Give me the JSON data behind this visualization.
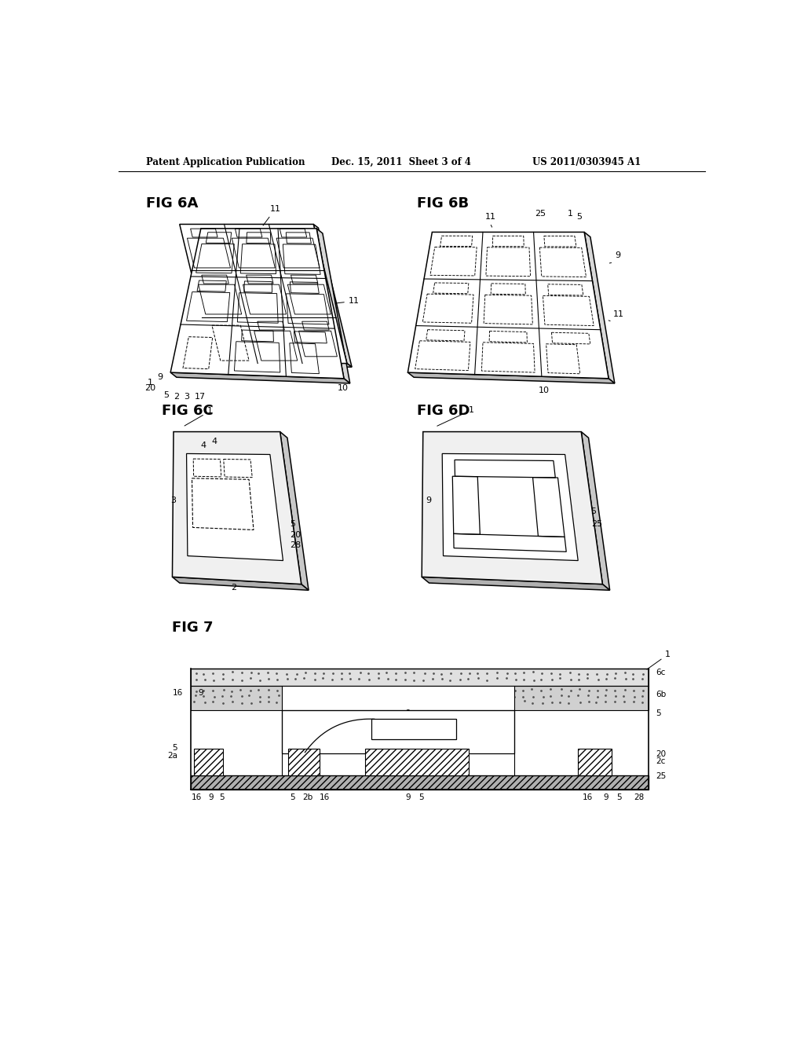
{
  "bg": "#ffffff",
  "header_left": "Patent Application Publication",
  "header_mid": "Dec. 15, 2011  Sheet 3 of 4",
  "header_right": "US 2011/0303945 A1"
}
